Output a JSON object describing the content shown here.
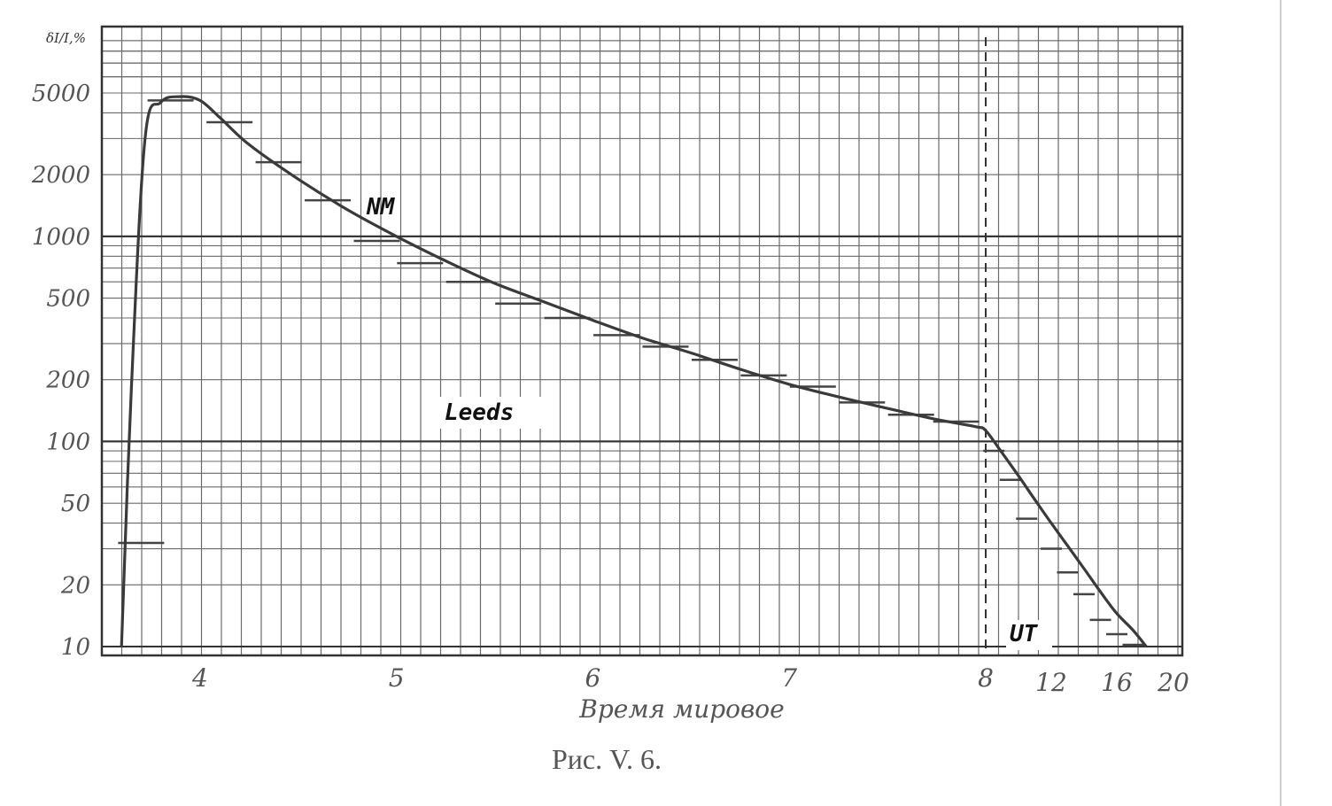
{
  "chart_data": {
    "type": "line",
    "ylabel": "δI/I,%",
    "xlabel": "Время мировое",
    "caption": "Рис. V. 6.",
    "y_scale": "log",
    "ylim": [
      10,
      5000
    ],
    "y_ticks": [
      "5000",
      "2000",
      "1000",
      "500",
      "200",
      "100",
      "50",
      "20",
      "10"
    ],
    "x_ticks_left": [
      "4",
      "5",
      "6",
      "7",
      "8"
    ],
    "x_ticks_right": [
      "12",
      "16",
      "20"
    ],
    "annotations": [
      "NM",
      "Leeds",
      "UT"
    ],
    "series": [
      {
        "values_left": [
          [
            3.6,
            10
          ],
          [
            3.65,
            180
          ],
          [
            3.72,
            3000
          ],
          [
            3.8,
            4500
          ],
          [
            3.9,
            4800
          ],
          [
            4.0,
            4600
          ],
          [
            4.1,
            3800
          ],
          [
            4.25,
            2800
          ],
          [
            4.5,
            1900
          ],
          [
            4.75,
            1350
          ],
          [
            5.0,
            1000
          ],
          [
            5.25,
            760
          ],
          [
            5.5,
            590
          ],
          [
            5.75,
            480
          ],
          [
            6.0,
            390
          ],
          [
            6.25,
            320
          ],
          [
            6.5,
            270
          ],
          [
            6.75,
            225
          ],
          [
            7.0,
            190
          ],
          [
            7.25,
            165
          ],
          [
            7.5,
            145
          ],
          [
            7.75,
            128
          ],
          [
            7.95,
            118
          ],
          [
            8.0,
            113
          ]
        ],
        "values_right": [
          [
            8.0,
            113
          ],
          [
            9,
            88
          ],
          [
            10,
            68
          ],
          [
            11,
            52
          ],
          [
            12,
            40
          ],
          [
            13,
            31
          ],
          [
            14,
            24
          ],
          [
            15,
            18.5
          ],
          [
            16,
            14.5
          ],
          [
            17,
            12
          ],
          [
            17.8,
            10
          ]
        ]
      }
    ],
    "measurements_left": [
      [
        3.7,
        32
      ],
      [
        3.85,
        4600
      ],
      [
        4.15,
        3600
      ],
      [
        4.4,
        2300
      ],
      [
        4.65,
        1500
      ],
      [
        4.9,
        950
      ],
      [
        5.12,
        740
      ],
      [
        5.37,
        600
      ],
      [
        5.62,
        470
      ],
      [
        5.87,
        400
      ],
      [
        6.12,
        330
      ],
      [
        6.37,
        290
      ],
      [
        6.62,
        250
      ],
      [
        6.87,
        210
      ],
      [
        7.12,
        185
      ],
      [
        7.37,
        155
      ],
      [
        7.62,
        135
      ],
      [
        7.85,
        125
      ]
    ],
    "measurements_right": [
      [
        8.5,
        90
      ],
      [
        9.5,
        65
      ],
      [
        10.5,
        42
      ],
      [
        12,
        30
      ],
      [
        13,
        23
      ],
      [
        14,
        18
      ],
      [
        15,
        13.5
      ],
      [
        16,
        11.5
      ],
      [
        17,
        10.2
      ]
    ]
  }
}
